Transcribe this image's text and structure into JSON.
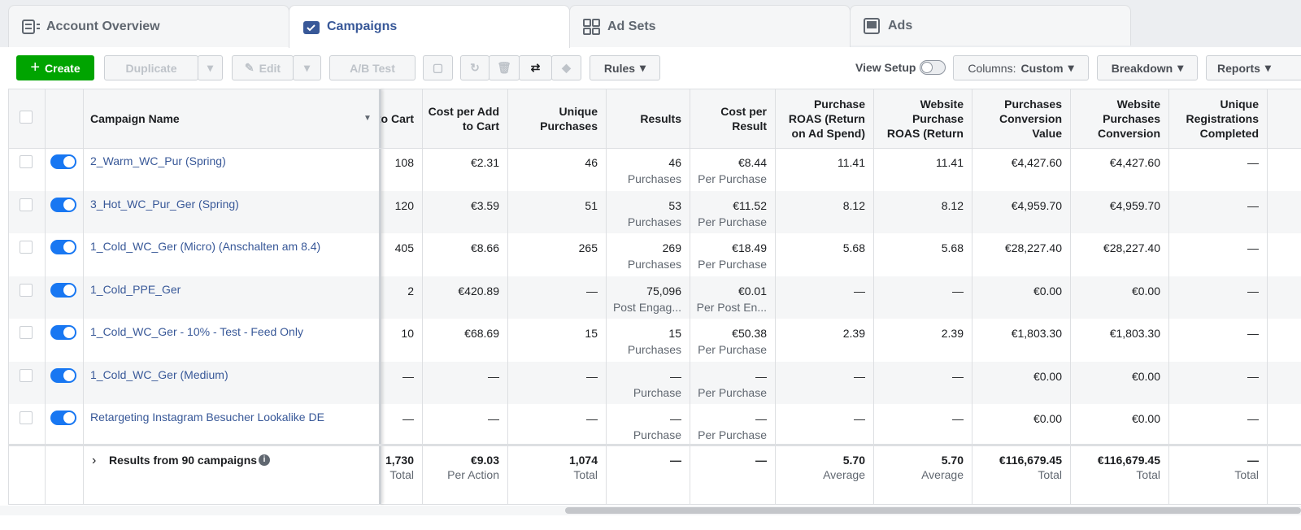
{
  "tabs": [
    "Account Overview",
    "Campaigns",
    "Ad Sets",
    "Ads"
  ],
  "toolbar": {
    "create": "Create",
    "duplicate": "Duplicate",
    "edit": "Edit",
    "ab_test": "A/B Test",
    "rules": "Rules",
    "view_setup": "View Setup",
    "columns_label": "Columns:",
    "columns_value": "Custom",
    "breakdown": "Breakdown",
    "reports": "Reports"
  },
  "table": {
    "headers": [
      "Campaign Name",
      "dds to Cart",
      "Cost per Add to Cart",
      "Unique Purchases",
      "Results",
      "Cost per Result",
      "Purchase ROAS (Return on Ad Spend)",
      "Website Purchase ROAS (Return",
      "Purchases Conversion Value",
      "Website Purchases Conversion",
      "Unique Registrations Completed"
    ],
    "rows": [
      [
        "2_Warm_WC_Pur (Spring)",
        "108",
        "€2.31",
        "46",
        "46",
        "Purchases",
        "€8.44",
        "Per Purchase",
        "11.41",
        "11.41",
        "€4,427.60",
        "€4,427.60",
        "—"
      ],
      [
        "3_Hot_WC_Pur_Ger (Spring)",
        "120",
        "€3.59",
        "51",
        "53",
        "Purchases",
        "€11.52",
        "Per Purchase",
        "8.12",
        "8.12",
        "€4,959.70",
        "€4,959.70",
        "—"
      ],
      [
        "1_Cold_WC_Ger (Micro) (Anschalten am 8.4)",
        "405",
        "€8.66",
        "265",
        "269",
        "Purchases",
        "€18.49",
        "Per Purchase",
        "5.68",
        "5.68",
        "€28,227.40",
        "€28,227.40",
        "—"
      ],
      [
        "1_Cold_PPE_Ger",
        "2",
        "€420.89",
        "—",
        "75,096",
        "Post Engag...",
        "€0.01",
        "Per Post En...",
        "—",
        "—",
        "€0.00",
        "€0.00",
        "—"
      ],
      [
        "1_Cold_WC_Ger - 10% - Test - Feed Only",
        "10",
        "€68.69",
        "15",
        "15",
        "Purchases",
        "€50.38",
        "Per Purchase",
        "2.39",
        "2.39",
        "€1,803.30",
        "€1,803.30",
        "—"
      ],
      [
        "1_Cold_WC_Ger (Medium)",
        "—",
        "—",
        "—",
        "—",
        "Purchase",
        "—",
        "Per Purchase",
        "—",
        "—",
        "€0.00",
        "€0.00",
        "—"
      ],
      [
        "Retargeting Instagram Besucher Lookalike DE",
        "—",
        "—",
        "—",
        "—",
        "Purchase",
        "—",
        "Per Purchase",
        "—",
        "—",
        "€0.00",
        "€0.00",
        "—"
      ]
    ],
    "footer": {
      "label": "Results from 90 campaigns",
      "cells": [
        {
          "value": "1,730",
          "sub": "Total"
        },
        {
          "value": "€9.03",
          "sub": "Per Action"
        },
        {
          "value": "1,074",
          "sub": "Total"
        },
        {
          "value": "—"
        },
        {
          "value": "—"
        },
        {
          "value": "5.70",
          "sub": "Average"
        },
        {
          "value": "5.70",
          "sub": "Average"
        },
        {
          "value": "€116,679.45",
          "sub": "Total"
        },
        {
          "value": "€116,679.45",
          "sub": "Total"
        },
        {
          "value": "—",
          "sub": "Total"
        }
      ]
    }
  }
}
